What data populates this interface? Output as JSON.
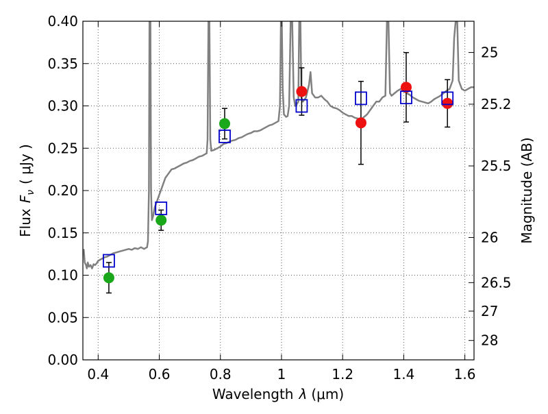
{
  "chart_data": {
    "type": "scatter",
    "xlabel_prefix": "Wavelength",
    "xlabel_symbol": "λ",
    "xlabel_unit": "(μm)",
    "ylabel_prefix": "Flux",
    "ylabel_symbol": "F",
    "ylabel_subscript": "ν",
    "ylabel_unit": "( μJy )",
    "y2label": "Magnitude (AB)",
    "xlim": [
      0.35,
      1.63
    ],
    "ylim": [
      0.0,
      0.4
    ],
    "grid": true,
    "x_ticks": [
      {
        "v": 0.4,
        "label": "0.4"
      },
      {
        "v": 0.6,
        "label": "0.6"
      },
      {
        "v": 0.8,
        "label": "0.8"
      },
      {
        "v": 1.0,
        "label": "1"
      },
      {
        "v": 1.2,
        "label": "1.2"
      },
      {
        "v": 1.4,
        "label": "1.4"
      },
      {
        "v": 1.6,
        "label": "1.6"
      }
    ],
    "y_ticks": [
      {
        "v": 0.0,
        "label": "0.00"
      },
      {
        "v": 0.05,
        "label": "0.05"
      },
      {
        "v": 0.1,
        "label": "0.10"
      },
      {
        "v": 0.15,
        "label": "0.15"
      },
      {
        "v": 0.2,
        "label": "0.20"
      },
      {
        "v": 0.25,
        "label": "0.25"
      },
      {
        "v": 0.3,
        "label": "0.30"
      },
      {
        "v": 0.35,
        "label": "0.35"
      },
      {
        "v": 0.4,
        "label": "0.40"
      }
    ],
    "y2_ticks": [
      {
        "mag": 25,
        "label": "25"
      },
      {
        "mag": 25.2,
        "label": "25.2"
      },
      {
        "mag": 25.5,
        "label": "25.5"
      },
      {
        "mag": 26,
        "label": "26"
      },
      {
        "mag": 26.5,
        "label": "26.5"
      },
      {
        "mag": 27,
        "label": "27"
      },
      {
        "mag": 28,
        "label": "28"
      }
    ],
    "colors": {
      "spectrum": "#808080",
      "green": "#1aa81a",
      "red": "#ee1111",
      "model": "#0000cc",
      "errorbar": "#000000",
      "grid": "#555555"
    },
    "spectrum": [
      [
        0.35,
        0.125
      ],
      [
        0.353,
        0.13
      ],
      [
        0.356,
        0.115
      ],
      [
        0.36,
        0.112
      ],
      [
        0.363,
        0.108
      ],
      [
        0.366,
        0.115
      ],
      [
        0.37,
        0.11
      ],
      [
        0.375,
        0.112
      ],
      [
        0.38,
        0.108
      ],
      [
        0.385,
        0.113
      ],
      [
        0.39,
        0.112
      ],
      [
        0.395,
        0.114
      ],
      [
        0.4,
        0.117
      ],
      [
        0.41,
        0.119
      ],
      [
        0.42,
        0.121
      ],
      [
        0.43,
        0.122
      ],
      [
        0.44,
        0.124
      ],
      [
        0.45,
        0.126
      ],
      [
        0.46,
        0.127
      ],
      [
        0.47,
        0.128
      ],
      [
        0.48,
        0.129
      ],
      [
        0.49,
        0.13
      ],
      [
        0.5,
        0.131
      ],
      [
        0.51,
        0.13
      ],
      [
        0.52,
        0.132
      ],
      [
        0.53,
        0.131
      ],
      [
        0.54,
        0.133
      ],
      [
        0.55,
        0.131
      ],
      [
        0.555,
        0.132
      ],
      [
        0.56,
        0.133
      ],
      [
        0.563,
        0.14
      ],
      [
        0.566,
        0.2
      ],
      [
        0.568,
        0.4
      ],
      [
        0.571,
        0.4
      ],
      [
        0.573,
        0.2
      ],
      [
        0.576,
        0.165
      ],
      [
        0.58,
        0.17
      ],
      [
        0.585,
        0.18
      ],
      [
        0.59,
        0.185
      ],
      [
        0.595,
        0.19
      ],
      [
        0.6,
        0.195
      ],
      [
        0.605,
        0.2
      ],
      [
        0.61,
        0.205
      ],
      [
        0.615,
        0.21
      ],
      [
        0.62,
        0.215
      ],
      [
        0.63,
        0.22
      ],
      [
        0.64,
        0.225
      ],
      [
        0.65,
        0.226
      ],
      [
        0.66,
        0.228
      ],
      [
        0.67,
        0.23
      ],
      [
        0.68,
        0.232
      ],
      [
        0.69,
        0.233
      ],
      [
        0.7,
        0.235
      ],
      [
        0.71,
        0.236
      ],
      [
        0.72,
        0.238
      ],
      [
        0.73,
        0.24
      ],
      [
        0.74,
        0.241
      ],
      [
        0.75,
        0.243
      ],
      [
        0.755,
        0.244
      ],
      [
        0.758,
        0.26
      ],
      [
        0.761,
        0.4
      ],
      [
        0.764,
        0.4
      ],
      [
        0.767,
        0.26
      ],
      [
        0.77,
        0.247
      ],
      [
        0.78,
        0.248
      ],
      [
        0.79,
        0.25
      ],
      [
        0.8,
        0.252
      ],
      [
        0.81,
        0.255
      ],
      [
        0.82,
        0.256
      ],
      [
        0.83,
        0.258
      ],
      [
        0.84,
        0.259
      ],
      [
        0.85,
        0.26
      ],
      [
        0.86,
        0.262
      ],
      [
        0.87,
        0.263
      ],
      [
        0.88,
        0.265
      ],
      [
        0.89,
        0.267
      ],
      [
        0.9,
        0.268
      ],
      [
        0.91,
        0.27
      ],
      [
        0.92,
        0.27
      ],
      [
        0.93,
        0.271
      ],
      [
        0.94,
        0.273
      ],
      [
        0.95,
        0.275
      ],
      [
        0.96,
        0.277
      ],
      [
        0.97,
        0.278
      ],
      [
        0.98,
        0.28
      ],
      [
        0.99,
        0.282
      ],
      [
        0.995,
        0.3
      ],
      [
        0.998,
        0.4
      ],
      [
        1.001,
        0.4
      ],
      [
        1.004,
        0.32
      ],
      [
        1.008,
        0.29
      ],
      [
        1.015,
        0.287
      ],
      [
        1.02,
        0.288
      ],
      [
        1.025,
        0.3
      ],
      [
        1.03,
        0.4
      ],
      [
        1.035,
        0.4
      ],
      [
        1.04,
        0.31
      ],
      [
        1.045,
        0.3
      ],
      [
        1.05,
        0.302
      ],
      [
        1.055,
        0.305
      ],
      [
        1.058,
        0.4
      ],
      [
        1.062,
        0.4
      ],
      [
        1.065,
        0.31
      ],
      [
        1.07,
        0.305
      ],
      [
        1.08,
        0.31
      ],
      [
        1.09,
        0.325
      ],
      [
        1.095,
        0.34
      ],
      [
        1.1,
        0.315
      ],
      [
        1.11,
        0.31
      ],
      [
        1.12,
        0.31
      ],
      [
        1.13,
        0.312
      ],
      [
        1.14,
        0.308
      ],
      [
        1.15,
        0.305
      ],
      [
        1.16,
        0.3
      ],
      [
        1.17,
        0.298
      ],
      [
        1.18,
        0.297
      ],
      [
        1.19,
        0.295
      ],
      [
        1.2,
        0.292
      ],
      [
        1.21,
        0.29
      ],
      [
        1.22,
        0.288
      ],
      [
        1.23,
        0.288
      ],
      [
        1.24,
        0.286
      ],
      [
        1.25,
        0.285
      ],
      [
        1.26,
        0.284
      ],
      [
        1.27,
        0.287
      ],
      [
        1.28,
        0.29
      ],
      [
        1.29,
        0.295
      ],
      [
        1.3,
        0.3
      ],
      [
        1.31,
        0.305
      ],
      [
        1.32,
        0.305
      ],
      [
        1.33,
        0.31
      ],
      [
        1.34,
        0.312
      ],
      [
        1.345,
        0.4
      ],
      [
        1.35,
        0.4
      ],
      [
        1.355,
        0.315
      ],
      [
        1.36,
        0.312
      ],
      [
        1.37,
        0.315
      ],
      [
        1.38,
        0.318
      ],
      [
        1.39,
        0.32
      ],
      [
        1.4,
        0.318
      ],
      [
        1.41,
        0.315
      ],
      [
        1.42,
        0.313
      ],
      [
        1.43,
        0.31
      ],
      [
        1.44,
        0.308
      ],
      [
        1.45,
        0.306
      ],
      [
        1.46,
        0.305
      ],
      [
        1.47,
        0.304
      ],
      [
        1.48,
        0.303
      ],
      [
        1.49,
        0.305
      ],
      [
        1.5,
        0.308
      ],
      [
        1.51,
        0.31
      ],
      [
        1.52,
        0.312
      ],
      [
        1.53,
        0.315
      ],
      [
        1.54,
        0.318
      ],
      [
        1.55,
        0.32
      ],
      [
        1.56,
        0.33
      ],
      [
        1.565,
        0.38
      ],
      [
        1.57,
        0.4
      ],
      [
        1.575,
        0.4
      ],
      [
        1.58,
        0.33
      ],
      [
        1.59,
        0.32
      ],
      [
        1.6,
        0.318
      ],
      [
        1.61,
        0.32
      ],
      [
        1.62,
        0.322
      ],
      [
        1.63,
        0.322
      ]
    ],
    "photometry": [
      {
        "x": 0.435,
        "y": 0.097,
        "yerr": 0.018,
        "color": "green"
      },
      {
        "x": 0.606,
        "y": 0.165,
        "yerr": 0.012,
        "color": "green"
      },
      {
        "x": 0.814,
        "y": 0.279,
        "yerr": 0.018,
        "color": "green"
      },
      {
        "x": 1.066,
        "y": 0.317,
        "yerr": 0.028,
        "color": "red"
      },
      {
        "x": 1.26,
        "y": 0.28,
        "yerr": 0.049,
        "color": "red"
      },
      {
        "x": 1.408,
        "y": 0.322,
        "yerr": 0.041,
        "color": "red"
      },
      {
        "x": 1.543,
        "y": 0.303,
        "yerr": 0.028,
        "color": "red"
      }
    ],
    "model_points": [
      {
        "x": 0.435,
        "y": 0.117
      },
      {
        "x": 0.606,
        "y": 0.179
      },
      {
        "x": 0.814,
        "y": 0.264
      },
      {
        "x": 1.066,
        "y": 0.3
      },
      {
        "x": 1.26,
        "y": 0.309
      },
      {
        "x": 1.408,
        "y": 0.31
      },
      {
        "x": 1.543,
        "y": 0.309
      }
    ]
  }
}
